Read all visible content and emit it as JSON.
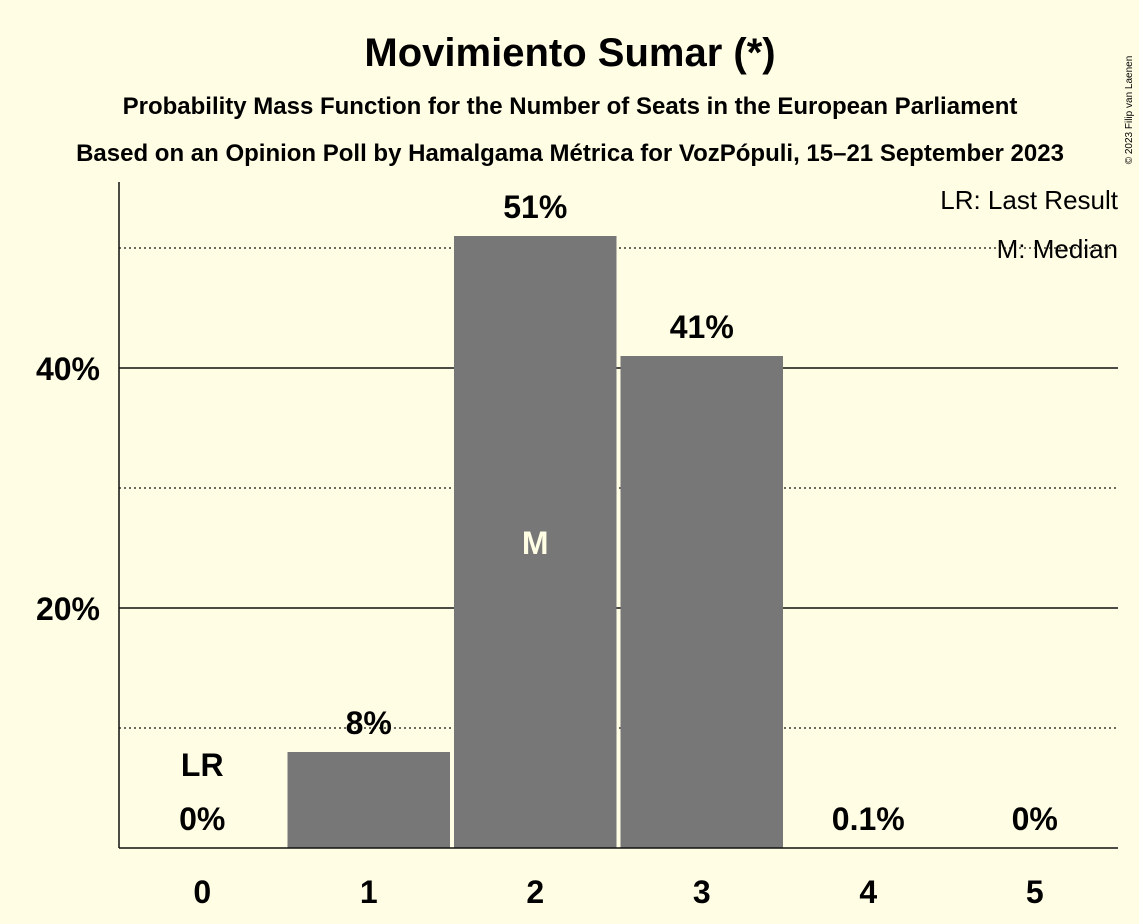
{
  "chart_data": {
    "type": "bar",
    "title": "Movimiento Sumar (*)",
    "subtitle_1": "Probability Mass Function for the Number of Seats in the European Parliament",
    "subtitle_2": "Based on an Opinion Poll by Hamalgama Métrica for VozPópuli, 15–21 September 2023",
    "categories": [
      "0",
      "1",
      "2",
      "3",
      "4",
      "5"
    ],
    "values": [
      0,
      8,
      51,
      41,
      0.1,
      0
    ],
    "data_labels": [
      "0%",
      "8%",
      "51%",
      "41%",
      "0.1%",
      "0%"
    ],
    "ylim": [
      0,
      55
    ],
    "y_ticks": [
      {
        "value": 20,
        "label": "20%"
      },
      {
        "value": 40,
        "label": "40%"
      }
    ],
    "minor_grid": [
      10,
      30,
      50
    ],
    "last_result_category": "0",
    "last_result_marker": "LR",
    "median_category": "2",
    "median_marker": "M",
    "legend": [
      "LR: Last Result",
      "M: Median"
    ],
    "legend_position": "top-right",
    "bar_color": "#777777",
    "background_color": "#fffde4"
  },
  "copyright": "© 2023 Filip van Laenen"
}
